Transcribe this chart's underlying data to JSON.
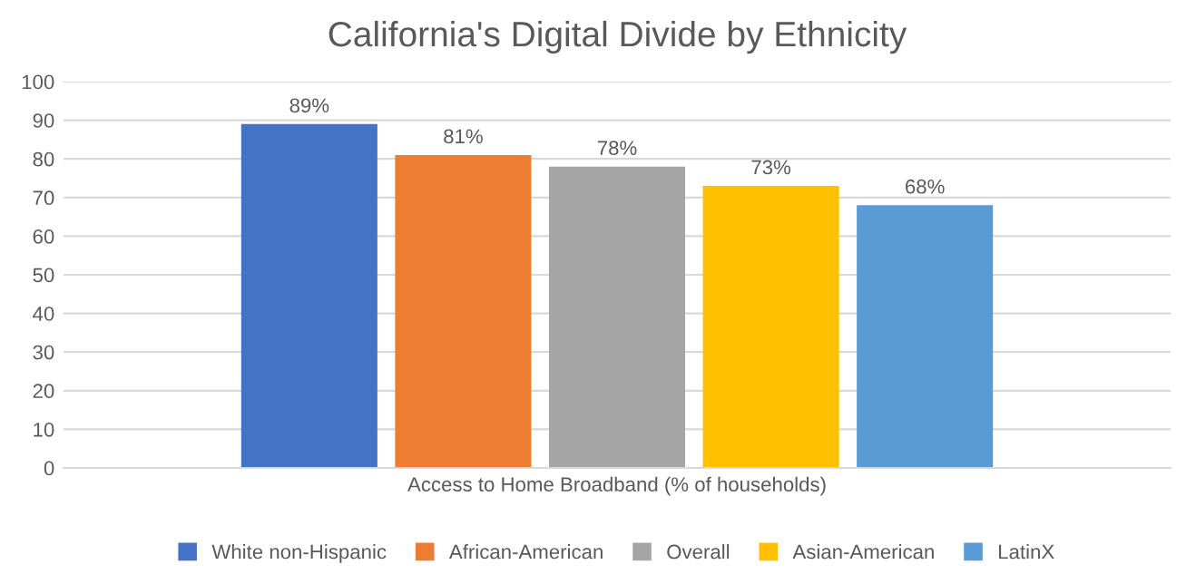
{
  "chart_data": {
    "type": "bar",
    "title": "California's Digital Divide by Ethnicity",
    "categories": [
      "Access to Home Broadband (% of households)"
    ],
    "series": [
      {
        "name": "White non-Hispanic",
        "color": "#4472c4",
        "values": [
          89
        ],
        "value_labels": [
          "89%"
        ]
      },
      {
        "name": "African-American",
        "color": "#ed7d31",
        "values": [
          81
        ],
        "value_labels": [
          "81%"
        ]
      },
      {
        "name": "Overall",
        "color": "#a5a5a5",
        "values": [
          78
        ],
        "value_labels": [
          "78%"
        ]
      },
      {
        "name": "Asian-American",
        "color": "#ffc000",
        "values": [
          73
        ],
        "value_labels": [
          "73%"
        ]
      },
      {
        "name": "LatinX",
        "color": "#5b9bd5",
        "values": [
          68
        ],
        "value_labels": [
          "68%"
        ]
      }
    ],
    "ylim": [
      0,
      100
    ],
    "yticks": [
      0,
      10,
      20,
      30,
      40,
      50,
      60,
      70,
      80,
      90,
      100
    ],
    "grid": "y",
    "legend": "bottom"
  }
}
